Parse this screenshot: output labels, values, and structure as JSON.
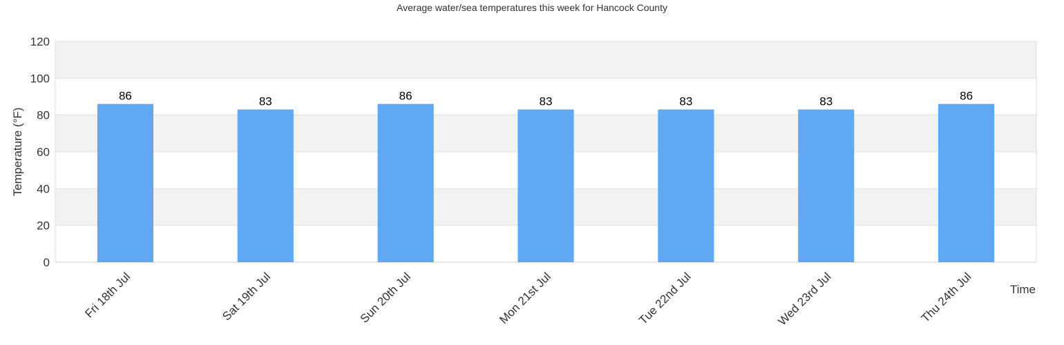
{
  "chart_data": {
    "type": "bar",
    "title": "Average water/sea temperatures this week for Hancock County",
    "y_label": "Temperature (°F)",
    "x_label": "Time",
    "categories": [
      "Fri 18th Jul",
      "Sat 19th Jul",
      "Sun 20th Jul",
      "Mon 21st Jul",
      "Tue 22nd Jul",
      "Wed 23rd Jul",
      "Thu 24th Jul"
    ],
    "values": [
      86,
      83,
      86,
      83,
      83,
      83,
      86
    ],
    "color": "#60a8f4",
    "ylim": [
      0,
      120
    ],
    "yticks": [
      0,
      20,
      40,
      60,
      80,
      100,
      120
    ],
    "grid": true
  }
}
